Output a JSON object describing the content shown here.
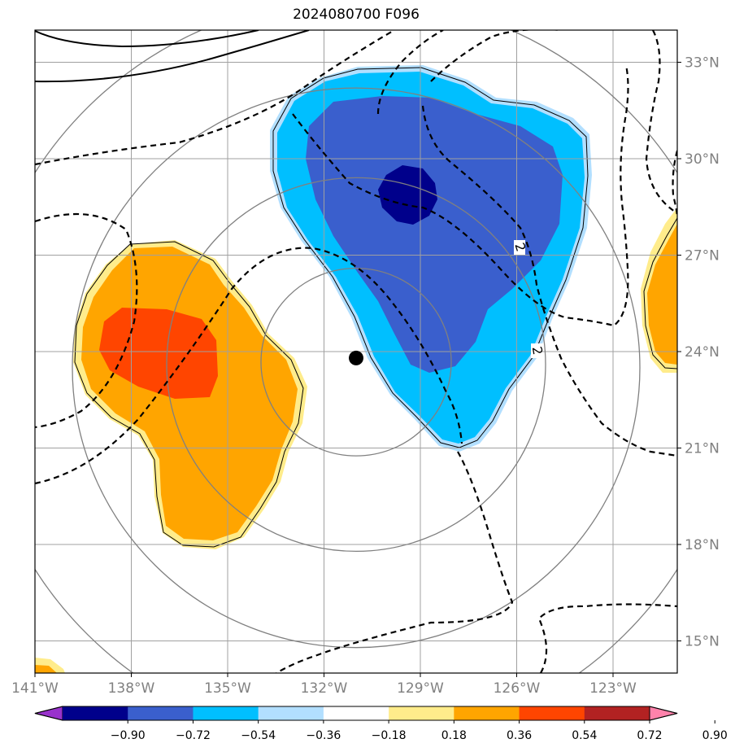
{
  "title": "2024080700 F096",
  "map": {
    "lon_range": [
      -141,
      -121
    ],
    "lat_range": [
      14,
      34
    ],
    "center_marker": {
      "lon": -131,
      "lat": 23.8
    },
    "gridline_color": "#a0a0a0",
    "ring_color": "#808080",
    "contour_label": "2"
  },
  "axes": {
    "lon_ticks": [
      "141°W",
      "138°W",
      "135°W",
      "132°W",
      "129°W",
      "126°W",
      "123°W"
    ],
    "lat_ticks": [
      "15°N",
      "18°N",
      "21°N",
      "24°N",
      "27°N",
      "30°N",
      "33°N"
    ]
  },
  "colorbar": {
    "ticks": [
      "−0.90",
      "−0.72",
      "−0.54",
      "−0.36",
      "−0.18",
      "0.18",
      "0.36",
      "0.54",
      "0.72",
      "0.90"
    ],
    "colors": [
      "#9932cc",
      "#00008b",
      "#3a5fcd",
      "#00bfff",
      "#b2dfff",
      "#ffffff",
      "#ffec8b",
      "#ffa500",
      "#ff4500",
      "#b22222",
      "#ff82ab"
    ]
  },
  "shading": {
    "light_yellow": "#ffec8b",
    "orange": "#ffa500",
    "orangered": "#ff4500",
    "light_blue": "#b2dfff",
    "deepskyblue": "#00bfff",
    "royalblue": "#3a5fcd",
    "darkblue": "#00008b"
  }
}
